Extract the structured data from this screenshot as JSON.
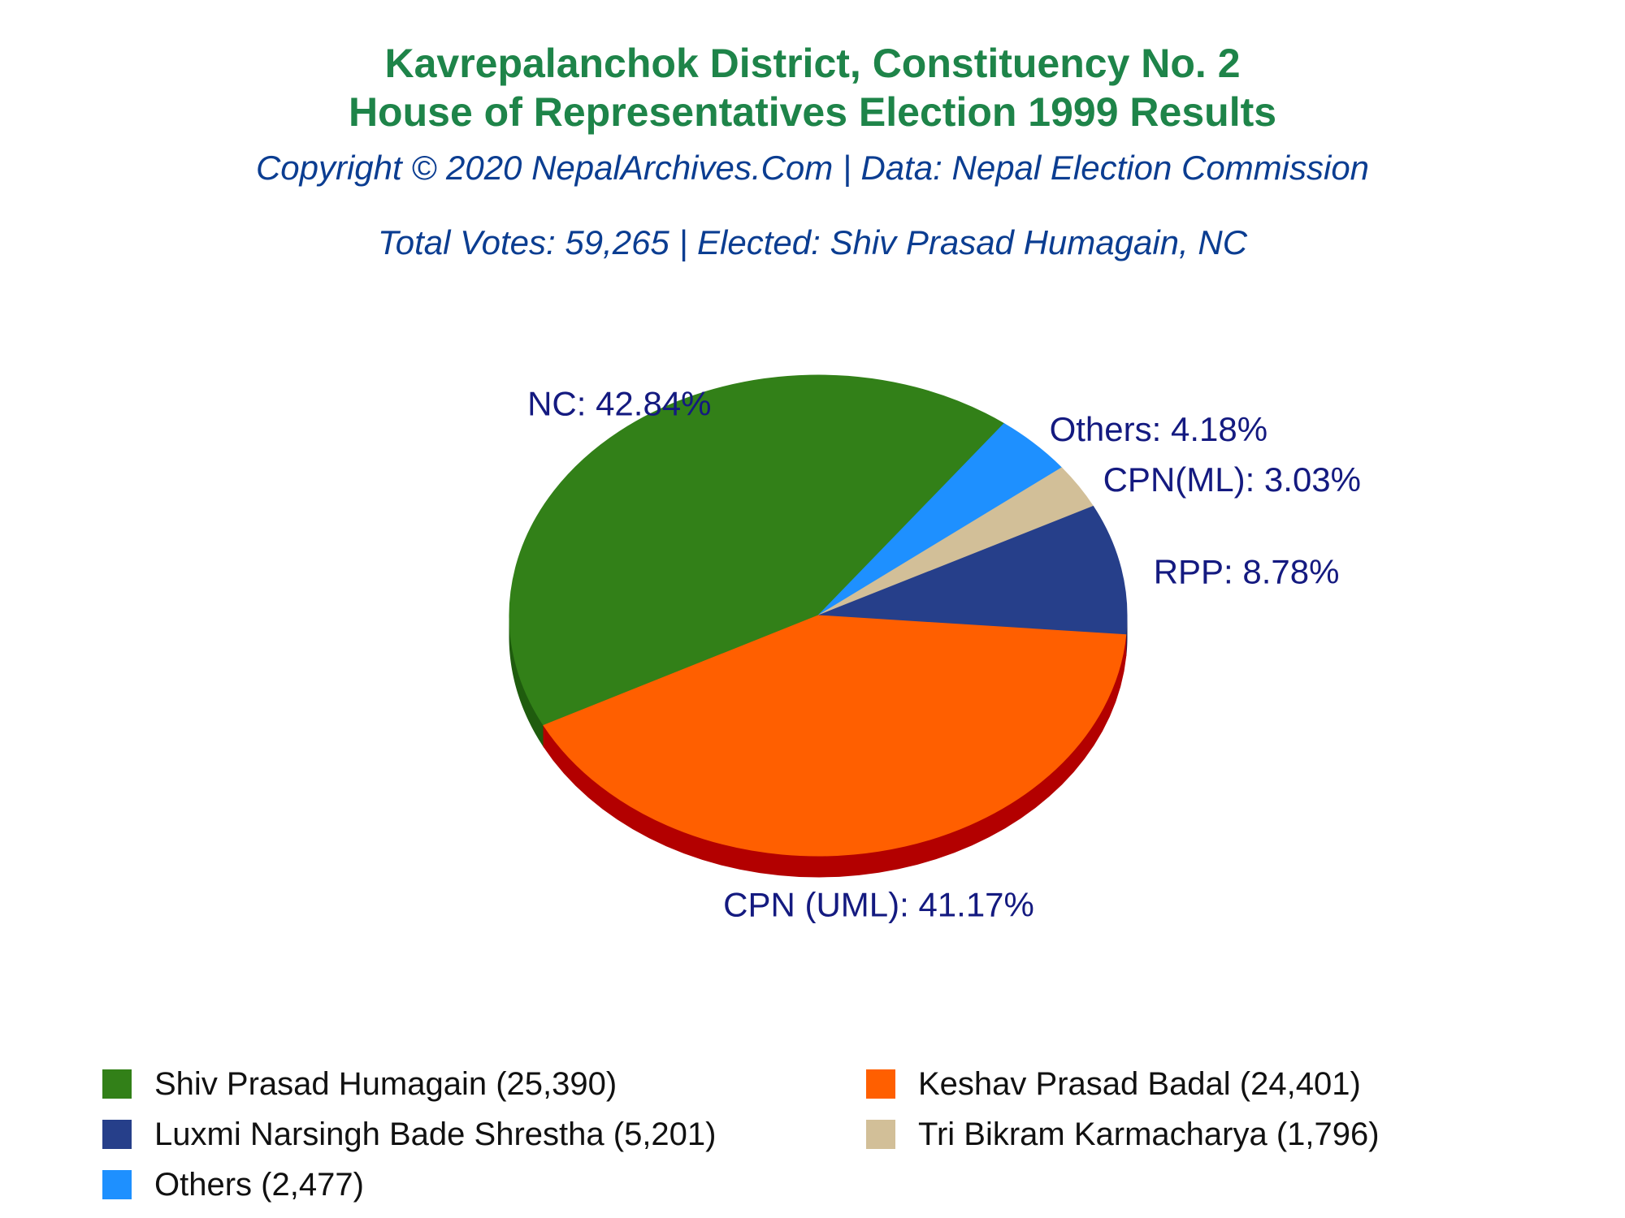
{
  "header": {
    "title_line1": "Kavrepalanchok District, Constituency No. 2",
    "title_line2": "House of Representatives Election 1999 Results",
    "copyright": "Copyright © 2020 NepalArchives.Com | Data: Nepal Election Commission",
    "summary": "Total Votes: 59,265 | Elected: Shiv Prasad Humagain, NC"
  },
  "chart_data": {
    "type": "pie",
    "title": "Kavrepalanchok District, Constituency No. 2",
    "subtitle": "House of Representatives Election 1999 Results",
    "total_votes": 59265,
    "slices": [
      {
        "key": "nc",
        "party": "NC",
        "label": "NC: 42.84%",
        "percent": 42.84,
        "candidate": "Shiv Prasad Humagain",
        "votes": 25390,
        "color": "#328018",
        "side_color": "#1f5c0e"
      },
      {
        "key": "others",
        "party": "Others",
        "label": "Others: 4.18%",
        "percent": 4.18,
        "candidate": "Others",
        "votes": 2477,
        "color": "#1e90ff",
        "side_color": "#0f5fb0"
      },
      {
        "key": "cpnml",
        "party": "CPN(ML)",
        "label": "CPN(ML): 3.03%",
        "percent": 3.03,
        "candidate": "Tri Bikram Karmacharya",
        "votes": 1796,
        "color": "#d2bf98",
        "side_color": "#9c8a68"
      },
      {
        "key": "rpp",
        "party": "RPP",
        "label": "RPP: 8.78%",
        "percent": 8.78,
        "candidate": "Luxmi Narsingh Bade Shrestha",
        "votes": 5201,
        "color": "#263f8a",
        "side_color": "#0f1b4f"
      },
      {
        "key": "uml",
        "party": "CPN (UML)",
        "label": "CPN (UML): 41.17%",
        "percent": 41.17,
        "candidate": "Keshav Prasad Badal",
        "votes": 24401,
        "color": "#ff5f00",
        "side_color": "#b30000"
      }
    ]
  },
  "legend": [
    {
      "label": "Shiv Prasad Humagain (25,390)",
      "color": "#328018"
    },
    {
      "label": "Keshav Prasad Badal (24,401)",
      "color": "#ff5f00"
    },
    {
      "label": "Luxmi Narsingh Bade Shrestha (5,201)",
      "color": "#263f8a"
    },
    {
      "label": "Tri Bikram Karmacharya (1,796)",
      "color": "#d2bf98"
    },
    {
      "label": "Others (2,477)",
      "color": "#1e90ff"
    }
  ],
  "colors": {
    "title": "#1e8449",
    "subtitle": "#0b3d91",
    "slice_label": "#141a80"
  }
}
